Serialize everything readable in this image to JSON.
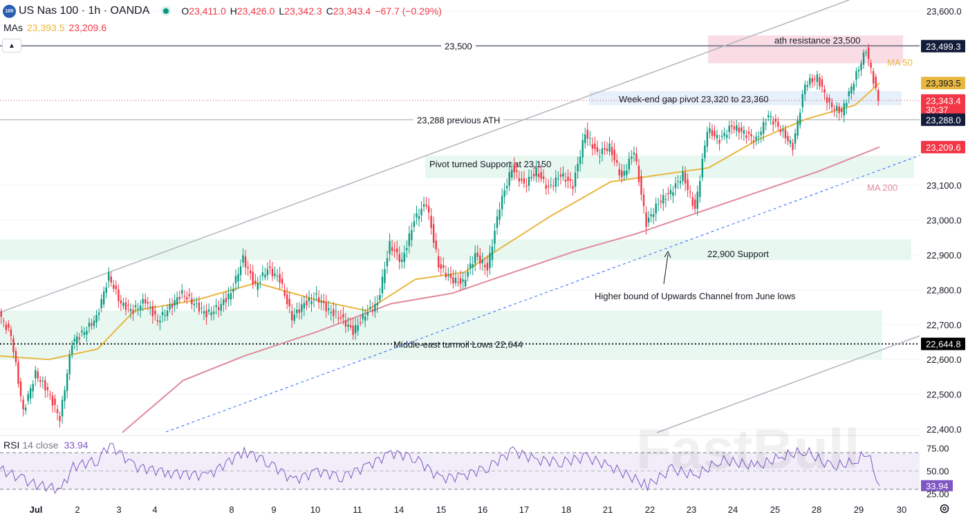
{
  "header": {
    "symbol": "US Nas 100 · 1h · OANDA",
    "logo": "100",
    "open_label": "O",
    "open": "23,411.0",
    "high_label": "H",
    "high": "23,426.0",
    "low_label": "L",
    "low": "23,342.3",
    "close_label": "C",
    "close": "23,343.4",
    "change": "−67.7 (−0.29%)"
  },
  "mas": {
    "label": "MAs",
    "ma50_value": "23,393.5",
    "ma200_value": "23,209.6"
  },
  "rsi": {
    "label": "RSI",
    "params": "14 close",
    "value": "33.94"
  },
  "colors": {
    "up": "#089981",
    "down": "#f23645",
    "ma50": "#e8b73f",
    "ma200": "#e08a9a",
    "rsi": "#7e57c2",
    "zone_green": "#e6f6ee",
    "zone_pink": "#f9d8e2",
    "zone_blue": "#e3eefa"
  },
  "icons": {
    "settings": "gear-icon",
    "collapse": "chevron-up-icon",
    "status": "market-status-dot"
  },
  "watermark": "FastBull",
  "chart_data": {
    "type": "candlestick",
    "timeframe": "1h",
    "y_range": [
      22400,
      23600
    ],
    "y_ticks": [
      {
        "value": 23600,
        "label": "23,600.0"
      },
      {
        "value": 23500,
        "label": "23,500.0"
      },
      {
        "value": 23100,
        "label": "23,100.0"
      },
      {
        "value": 23000,
        "label": "23,000.0"
      },
      {
        "value": 22900,
        "label": "22,900.0"
      },
      {
        "value": 22800,
        "label": "22,800.0"
      },
      {
        "value": 22700,
        "label": "22,700.0"
      },
      {
        "value": 22600,
        "label": "22,600.0"
      },
      {
        "value": 22500,
        "label": "22,500.0"
      },
      {
        "value": 22400,
        "label": "22,400.0"
      }
    ],
    "x_labels": [
      "Jul",
      "2",
      "3",
      "4",
      "8",
      "9",
      "10",
      "11",
      "14",
      "15",
      "16",
      "17",
      "18",
      "21",
      "22",
      "23",
      "24",
      "25",
      "28",
      "29",
      "30"
    ],
    "price_path": [
      [
        0,
        22730
      ],
      [
        1,
        22670
      ],
      [
        2,
        22450
      ],
      [
        3,
        22560
      ],
      [
        4,
        22510
      ],
      [
        5,
        22430
      ],
      [
        6,
        22650
      ],
      [
        7,
        22680
      ],
      [
        8,
        22720
      ],
      [
        9,
        22840
      ],
      [
        10,
        22760
      ],
      [
        11,
        22740
      ],
      [
        12,
        22770
      ],
      [
        13,
        22710
      ],
      [
        14,
        22750
      ],
      [
        15,
        22790
      ],
      [
        16,
        22760
      ],
      [
        17,
        22730
      ],
      [
        18,
        22750
      ],
      [
        19,
        22790
      ],
      [
        20,
        22890
      ],
      [
        21,
        22810
      ],
      [
        22,
        22860
      ],
      [
        23,
        22830
      ],
      [
        24,
        22720
      ],
      [
        25,
        22760
      ],
      [
        26,
        22780
      ],
      [
        27,
        22740
      ],
      [
        28,
        22720
      ],
      [
        29,
        22680
      ],
      [
        30,
        22730
      ],
      [
        31,
        22760
      ],
      [
        32,
        22930
      ],
      [
        33,
        22880
      ],
      [
        34,
        23000
      ],
      [
        35,
        23050
      ],
      [
        36,
        22870
      ],
      [
        37,
        22830
      ],
      [
        38,
        22820
      ],
      [
        39,
        22900
      ],
      [
        40,
        22860
      ],
      [
        41,
        23040
      ],
      [
        42,
        23150
      ],
      [
        43,
        23100
      ],
      [
        44,
        23140
      ],
      [
        45,
        23090
      ],
      [
        46,
        23130
      ],
      [
        47,
        23100
      ],
      [
        48,
        23250
      ],
      [
        49,
        23190
      ],
      [
        50,
        23210
      ],
      [
        51,
        23120
      ],
      [
        52,
        23200
      ],
      [
        53,
        22990
      ],
      [
        54,
        23050
      ],
      [
        55,
        23080
      ],
      [
        56,
        23130
      ],
      [
        57,
        23030
      ],
      [
        58,
        23260
      ],
      [
        59,
        23230
      ],
      [
        60,
        23270
      ],
      [
        61,
        23250
      ],
      [
        62,
        23230
      ],
      [
        63,
        23300
      ],
      [
        64,
        23260
      ],
      [
        65,
        23210
      ],
      [
        66,
        23390
      ],
      [
        67,
        23410
      ],
      [
        68,
        23330
      ],
      [
        69,
        23310
      ],
      [
        70,
        23400
      ],
      [
        71,
        23490
      ],
      [
        72,
        23343
      ]
    ],
    "ma50_path": [
      [
        0,
        22610
      ],
      [
        4,
        22600
      ],
      [
        8,
        22630
      ],
      [
        11,
        22740
      ],
      [
        16,
        22770
      ],
      [
        21,
        22820
      ],
      [
        26,
        22770
      ],
      [
        30,
        22740
      ],
      [
        34,
        22830
      ],
      [
        38,
        22850
      ],
      [
        41,
        22920
      ],
      [
        45,
        23010
      ],
      [
        50,
        23110
      ],
      [
        54,
        23130
      ],
      [
        58,
        23150
      ],
      [
        62,
        23230
      ],
      [
        66,
        23290
      ],
      [
        70,
        23330
      ],
      [
        72,
        23393.5
      ]
    ],
    "ma200_path": [
      [
        10,
        22390
      ],
      [
        15,
        22540
      ],
      [
        20,
        22610
      ],
      [
        26,
        22680
      ],
      [
        32,
        22760
      ],
      [
        37,
        22790
      ],
      [
        42,
        22850
      ],
      [
        47,
        22910
      ],
      [
        52,
        22960
      ],
      [
        57,
        23020
      ],
      [
        62,
        23080
      ],
      [
        67,
        23140
      ],
      [
        72,
        23209.6
      ]
    ],
    "price_lines": [
      {
        "value": 23499.3,
        "label": "23,499.3",
        "style": "solid"
      },
      {
        "value": 23393.5,
        "label": "23,393.5",
        "style": "ma50"
      },
      {
        "value": 23343.4,
        "label": "23,343.4",
        "sublabel": "30:37",
        "style": "last"
      },
      {
        "value": 23288.0,
        "label": "23,288.0",
        "style": "solid"
      },
      {
        "value": 23209.6,
        "label": "23,209.6",
        "style": "ma200"
      },
      {
        "value": 22644.8,
        "label": "22,644.8",
        "style": "dotted"
      }
    ],
    "zones": [
      {
        "from": 23450,
        "to": 23530,
        "color": "pink",
        "label": "ath resistance 23,500"
      },
      {
        "from": 23330,
        "to": 23370,
        "color": "blue",
        "label": "Week-end gap pivot 23,320 to 23,360"
      },
      {
        "from": 23120,
        "to": 23185,
        "color": "green",
        "label": "Pivot turned Support at 23,150"
      },
      {
        "from": 22885,
        "to": 22945,
        "color": "green",
        "label": "22,900 Support"
      },
      {
        "from": 22600,
        "to": 22740,
        "color": "green",
        "label": "Middle-east turmoil Lows 22,644"
      }
    ],
    "line_labels": {
      "h23500": "23,500",
      "h23288": "23,288 previous ATH",
      "channel": "Higher bound of Upwards Channel from June lows",
      "ma50": "MA 50",
      "ma200": "MA 200"
    },
    "rsi": {
      "ticks": [
        {
          "value": 75,
          "label": "75.00"
        },
        {
          "value": 50,
          "label": "50.00"
        },
        {
          "value": 25,
          "label": "25.00"
        }
      ],
      "upper": 70,
      "lower": 30,
      "last": 33.94,
      "path": [
        [
          0,
          52
        ],
        [
          2,
          40
        ],
        [
          3,
          35
        ],
        [
          5,
          30
        ],
        [
          6,
          55
        ],
        [
          8,
          62
        ],
        [
          9,
          80
        ],
        [
          11,
          55
        ],
        [
          14,
          48
        ],
        [
          17,
          45
        ],
        [
          20,
          72
        ],
        [
          22,
          60
        ],
        [
          24,
          40
        ],
        [
          26,
          50
        ],
        [
          28,
          44
        ],
        [
          30,
          55
        ],
        [
          32,
          70
        ],
        [
          34,
          65
        ],
        [
          36,
          42
        ],
        [
          38,
          45
        ],
        [
          40,
          55
        ],
        [
          42,
          72
        ],
        [
          44,
          62
        ],
        [
          46,
          60
        ],
        [
          48,
          65
        ],
        [
          50,
          55
        ],
        [
          53,
          34
        ],
        [
          55,
          52
        ],
        [
          57,
          45
        ],
        [
          59,
          62
        ],
        [
          62,
          55
        ],
        [
          64,
          66
        ],
        [
          66,
          72
        ],
        [
          68,
          54
        ],
        [
          70,
          60
        ],
        [
          71,
          70
        ],
        [
          72,
          33.94
        ]
      ]
    }
  }
}
